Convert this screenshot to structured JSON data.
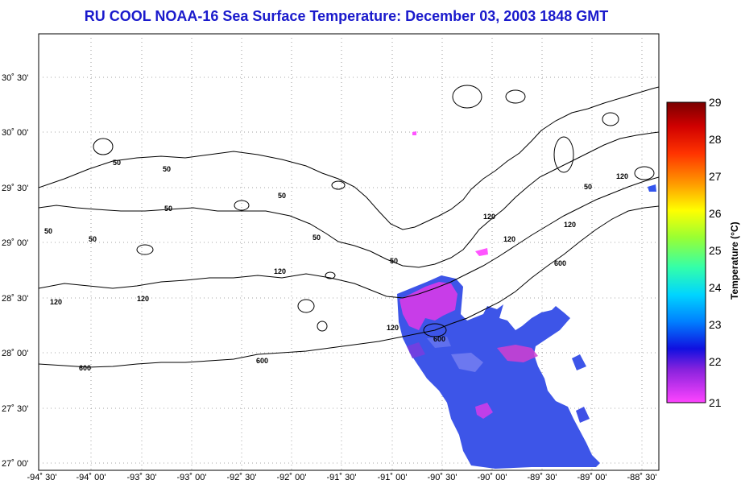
{
  "title": "RU COOL  NOAA-16  Sea Surface Temperature:  December 03, 2003 1848 GMT",
  "map": {
    "lat_labels": [
      "30˚ 30'",
      "30˚ 00'",
      "29˚ 30'",
      "29˚ 00'",
      "28˚ 30'",
      "28˚ 00'",
      "27˚ 30'",
      "27˚ 00'"
    ],
    "lon_labels": [
      "-94˚ 30'",
      "-94˚ 00'",
      "-93˚ 30'",
      "-93˚ 00'",
      "-92˚ 30'",
      "-92˚ 00'",
      "-91˚ 30'",
      "-91˚ 00'",
      "-90˚ 30'",
      "-90˚ 00'",
      "-89˚ 30'",
      "-89˚ 00'",
      "-88˚ 30'"
    ],
    "contour_labels": [
      "50",
      "50",
      "50",
      "50",
      "50",
      "50",
      "50",
      "50",
      "50",
      "120",
      "120",
      "120",
      "120",
      "120",
      "120",
      "120",
      "120",
      "600",
      "600",
      "600",
      "600"
    ],
    "colors": {
      "title": "#1a1acc",
      "gridlines": "#888888",
      "sst_cold": "#ff33ff",
      "sst_mid": "#3355ee",
      "sst_warm": "#5544cc"
    }
  },
  "colorbar": {
    "title": "Temperature (°C)",
    "ticks": [
      "29",
      "28",
      "27",
      "26",
      "25",
      "24",
      "23",
      "22",
      "21"
    ],
    "colors": [
      "#8b0000",
      "#ff0000",
      "#ff8800",
      "#ffff00",
      "#88ff00",
      "#00ffaa",
      "#00ccff",
      "#0033ff",
      "#ff33ff"
    ]
  }
}
